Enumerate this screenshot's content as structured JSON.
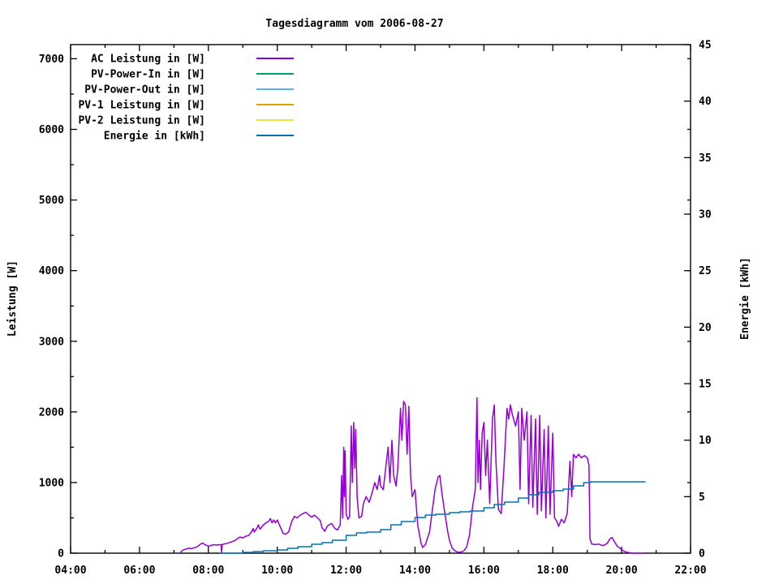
{
  "title": "Tagesdiagramm vom 2006-08-27",
  "axes": {
    "x": {
      "range_hours": [
        4,
        22
      ],
      "major_hours": [
        4,
        6,
        8,
        10,
        12,
        14,
        16,
        18,
        20,
        22
      ],
      "tick_labels": [
        "04:00",
        "06:00",
        "08:00",
        "10:00",
        "12:00",
        "14:00",
        "16:00",
        "18:00",
        "20:00",
        "22:00"
      ],
      "minor_step_hours": 1
    },
    "y_left": {
      "label": "Leistung [W]",
      "range": [
        0,
        7200
      ],
      "tick_values": [
        0,
        1000,
        2000,
        3000,
        4000,
        5000,
        6000,
        7000
      ],
      "tick_labels": [
        "0",
        "1000",
        "2000",
        "3000",
        "4000",
        "5000",
        "6000",
        "7000"
      ],
      "minor_step": 500
    },
    "y_right": {
      "label": "Energie [kWh]",
      "range": [
        0,
        45
      ],
      "tick_values": [
        0,
        5,
        10,
        15,
        20,
        25,
        30,
        35,
        40,
        45
      ],
      "tick_labels": [
        "0",
        "5",
        "10",
        "15",
        "20",
        "25",
        "30",
        "35",
        "40",
        "45"
      ]
    }
  },
  "legend": [
    {
      "label": "AC Leistung in [W]",
      "color": "#9400d3"
    },
    {
      "label": "PV-Power-In in [W]",
      "color": "#009e73"
    },
    {
      "label": "PV-Power-Out in [W]",
      "color": "#56b4e9"
    },
    {
      "label": "PV-1 Leistung in [W]",
      "color": "#e69f00"
    },
    {
      "label": "PV-2 Leistung in [W]",
      "color": "#f0e442"
    },
    {
      "label": "Energie in [kWh]",
      "color": "#0072b2"
    }
  ],
  "chart_data": {
    "type": "line",
    "title": "Tagesdiagramm vom 2006-08-27",
    "xlabel": "",
    "x_unit": "hour of day",
    "xlim": [
      4,
      22
    ],
    "ylim_left": [
      0,
      7200
    ],
    "ylim_right": [
      0,
      45
    ],
    "grid": false,
    "legend_position": "top-left-inside",
    "series": [
      {
        "name": "AC Leistung in [W]",
        "color": "#9400d3",
        "axis": "left",
        "unit": "W",
        "visible": true,
        "points": [
          [
            7.18,
            0
          ],
          [
            7.22,
            30
          ],
          [
            7.27,
            45
          ],
          [
            7.33,
            55
          ],
          [
            7.42,
            70
          ],
          [
            7.5,
            65
          ],
          [
            7.58,
            75
          ],
          [
            7.67,
            90
          ],
          [
            7.78,
            130
          ],
          [
            7.83,
            145
          ],
          [
            7.9,
            120
          ],
          [
            8.0,
            100
          ],
          [
            8.08,
            110
          ],
          [
            8.17,
            120
          ],
          [
            8.25,
            115
          ],
          [
            8.33,
            120
          ],
          [
            8.37,
            120
          ],
          [
            8.383,
            5
          ],
          [
            8.4,
            120
          ],
          [
            8.45,
            130
          ],
          [
            8.55,
            140
          ],
          [
            8.67,
            160
          ],
          [
            8.75,
            175
          ],
          [
            8.83,
            200
          ],
          [
            8.92,
            230
          ],
          [
            9.0,
            215
          ],
          [
            9.08,
            240
          ],
          [
            9.17,
            250
          ],
          [
            9.25,
            300
          ],
          [
            9.3,
            350
          ],
          [
            9.33,
            300
          ],
          [
            9.42,
            360
          ],
          [
            9.45,
            400
          ],
          [
            9.5,
            340
          ],
          [
            9.58,
            390
          ],
          [
            9.67,
            430
          ],
          [
            9.75,
            450
          ],
          [
            9.8,
            490
          ],
          [
            9.85,
            430
          ],
          [
            9.9,
            470
          ],
          [
            9.95,
            430
          ],
          [
            10.0,
            470
          ],
          [
            10.08,
            380
          ],
          [
            10.17,
            280
          ],
          [
            10.25,
            270
          ],
          [
            10.33,
            300
          ],
          [
            10.42,
            450
          ],
          [
            10.5,
            520
          ],
          [
            10.58,
            500
          ],
          [
            10.67,
            540
          ],
          [
            10.75,
            560
          ],
          [
            10.83,
            580
          ],
          [
            10.92,
            540
          ],
          [
            11.0,
            510
          ],
          [
            11.08,
            540
          ],
          [
            11.17,
            500
          ],
          [
            11.25,
            460
          ],
          [
            11.3,
            360
          ],
          [
            11.38,
            310
          ],
          [
            11.45,
            380
          ],
          [
            11.5,
            400
          ],
          [
            11.58,
            420
          ],
          [
            11.67,
            350
          ],
          [
            11.75,
            330
          ],
          [
            11.83,
            400
          ],
          [
            11.87,
            1100
          ],
          [
            11.9,
            500
          ],
          [
            11.93,
            1500
          ],
          [
            11.95,
            800
          ],
          [
            11.97,
            1450
          ],
          [
            12.0,
            550
          ],
          [
            12.05,
            480
          ],
          [
            12.1,
            520
          ],
          [
            12.15,
            1800
          ],
          [
            12.18,
            1000
          ],
          [
            12.22,
            1850
          ],
          [
            12.25,
            1200
          ],
          [
            12.28,
            1750
          ],
          [
            12.32,
            800
          ],
          [
            12.37,
            500
          ],
          [
            12.45,
            520
          ],
          [
            12.5,
            700
          ],
          [
            12.58,
            800
          ],
          [
            12.67,
            720
          ],
          [
            12.75,
            850
          ],
          [
            12.83,
            1000
          ],
          [
            12.9,
            900
          ],
          [
            12.97,
            1100
          ],
          [
            13.0,
            950
          ],
          [
            13.08,
            900
          ],
          [
            13.17,
            1300
          ],
          [
            13.22,
            1500
          ],
          [
            13.27,
            1000
          ],
          [
            13.33,
            1600
          ],
          [
            13.38,
            1100
          ],
          [
            13.45,
            950
          ],
          [
            13.5,
            1200
          ],
          [
            13.58,
            2050
          ],
          [
            13.62,
            1600
          ],
          [
            13.67,
            2150
          ],
          [
            13.72,
            2100
          ],
          [
            13.77,
            1400
          ],
          [
            13.82,
            2080
          ],
          [
            13.87,
            1100
          ],
          [
            13.92,
            800
          ],
          [
            14.0,
            900
          ],
          [
            14.08,
            400
          ],
          [
            14.17,
            150
          ],
          [
            14.22,
            80
          ],
          [
            14.3,
            120
          ],
          [
            14.42,
            300
          ],
          [
            14.5,
            600
          ],
          [
            14.58,
            900
          ],
          [
            14.67,
            1080
          ],
          [
            14.72,
            1100
          ],
          [
            14.78,
            850
          ],
          [
            14.87,
            550
          ],
          [
            14.95,
            300
          ],
          [
            15.0,
            180
          ],
          [
            15.08,
            70
          ],
          [
            15.17,
            30
          ],
          [
            15.25,
            15
          ],
          [
            15.33,
            15
          ],
          [
            15.42,
            35
          ],
          [
            15.5,
            90
          ],
          [
            15.58,
            250
          ],
          [
            15.67,
            650
          ],
          [
            15.75,
            900
          ],
          [
            15.8,
            2200
          ],
          [
            15.83,
            1000
          ],
          [
            15.87,
            1600
          ],
          [
            15.9,
            900
          ],
          [
            15.95,
            1700
          ],
          [
            16.0,
            1850
          ],
          [
            16.05,
            1100
          ],
          [
            16.1,
            1600
          ],
          [
            16.17,
            700
          ],
          [
            16.25,
            1900
          ],
          [
            16.3,
            2100
          ],
          [
            16.35,
            1300
          ],
          [
            16.42,
            620
          ],
          [
            16.5,
            560
          ],
          [
            16.58,
            1200
          ],
          [
            16.67,
            2050
          ],
          [
            16.72,
            1900
          ],
          [
            16.77,
            2100
          ],
          [
            16.83,
            1950
          ],
          [
            16.92,
            1800
          ],
          [
            17.0,
            2000
          ],
          [
            17.05,
            900
          ],
          [
            17.1,
            2050
          ],
          [
            17.17,
            1600
          ],
          [
            17.25,
            2000
          ],
          [
            17.3,
            700
          ],
          [
            17.37,
            1950
          ],
          [
            17.42,
            650
          ],
          [
            17.5,
            1900
          ],
          [
            17.55,
            550
          ],
          [
            17.62,
            1950
          ],
          [
            17.67,
            600
          ],
          [
            17.75,
            1750
          ],
          [
            17.8,
            500
          ],
          [
            17.87,
            1800
          ],
          [
            17.92,
            550
          ],
          [
            18.0,
            1700
          ],
          [
            18.05,
            500
          ],
          [
            18.12,
            450
          ],
          [
            18.17,
            380
          ],
          [
            18.25,
            480
          ],
          [
            18.33,
            430
          ],
          [
            18.42,
            560
          ],
          [
            18.5,
            1300
          ],
          [
            18.55,
            800
          ],
          [
            18.6,
            1400
          ],
          [
            18.67,
            1350
          ],
          [
            18.75,
            1400
          ],
          [
            18.83,
            1350
          ],
          [
            18.92,
            1380
          ],
          [
            19.0,
            1350
          ],
          [
            19.05,
            1250
          ],
          [
            19.08,
            200
          ],
          [
            19.13,
            130
          ],
          [
            19.25,
            120
          ],
          [
            19.33,
            130
          ],
          [
            19.42,
            110
          ],
          [
            19.5,
            115
          ],
          [
            19.58,
            140
          ],
          [
            19.67,
            210
          ],
          [
            19.72,
            220
          ],
          [
            19.78,
            170
          ],
          [
            19.87,
            100
          ],
          [
            20.0,
            50
          ],
          [
            20.08,
            25
          ],
          [
            20.2,
            8
          ],
          [
            20.33,
            0
          ],
          [
            20.6,
            0
          ]
        ]
      },
      {
        "name": "PV-Power-In in [W]",
        "color": "#009e73",
        "axis": "left",
        "unit": "W",
        "visible": false,
        "points": []
      },
      {
        "name": "PV-Power-Out in [W]",
        "color": "#56b4e9",
        "axis": "left",
        "unit": "W",
        "visible": false,
        "points": []
      },
      {
        "name": "PV-1 Leistung in [W]",
        "color": "#e69f00",
        "axis": "left",
        "unit": "W",
        "visible": false,
        "points": []
      },
      {
        "name": "PV-2 Leistung in [W]",
        "color": "#f0e442",
        "axis": "left",
        "unit": "W",
        "visible": false,
        "points": []
      },
      {
        "name": "Energie in [kWh]",
        "color": "#0072b2",
        "axis": "right",
        "unit": "kWh",
        "visible": true,
        "step": true,
        "points": [
          [
            8.35,
            0
          ],
          [
            8.6,
            0.02
          ],
          [
            9.0,
            0.06
          ],
          [
            9.3,
            0.12
          ],
          [
            9.6,
            0.2
          ],
          [
            10.0,
            0.3
          ],
          [
            10.3,
            0.42
          ],
          [
            10.6,
            0.55
          ],
          [
            11.0,
            0.8
          ],
          [
            11.3,
            0.95
          ],
          [
            11.6,
            1.15
          ],
          [
            12.0,
            1.6
          ],
          [
            12.3,
            1.8
          ],
          [
            12.6,
            1.9
          ],
          [
            13.0,
            2.1
          ],
          [
            13.3,
            2.5
          ],
          [
            13.6,
            2.8
          ],
          [
            14.0,
            3.15
          ],
          [
            14.3,
            3.35
          ],
          [
            14.6,
            3.45
          ],
          [
            15.0,
            3.6
          ],
          [
            15.3,
            3.65
          ],
          [
            15.6,
            3.75
          ],
          [
            16.0,
            4.0
          ],
          [
            16.3,
            4.3
          ],
          [
            16.6,
            4.5
          ],
          [
            17.0,
            4.9
          ],
          [
            17.3,
            5.2
          ],
          [
            17.6,
            5.4
          ],
          [
            18.0,
            5.55
          ],
          [
            18.3,
            5.7
          ],
          [
            18.6,
            5.95
          ],
          [
            18.9,
            6.25
          ],
          [
            19.1,
            6.3
          ],
          [
            19.5,
            6.3
          ],
          [
            20.0,
            6.3
          ],
          [
            20.68,
            6.32
          ]
        ]
      }
    ]
  }
}
